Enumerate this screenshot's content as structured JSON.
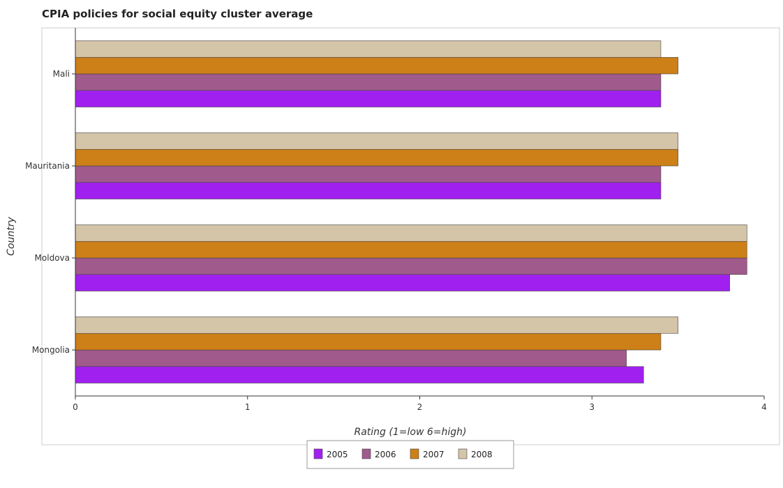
{
  "chart_data": {
    "type": "bar",
    "orientation": "horizontal",
    "title": "CPIA policies for social equity cluster average",
    "xlabel": "Rating (1=low 6=high)",
    "ylabel": "Country",
    "xlim": [
      0,
      4
    ],
    "xticks": [
      0,
      1,
      2,
      3,
      4
    ],
    "categories": [
      "Mali",
      "Mauritania",
      "Moldova",
      "Mongolia"
    ],
    "series": [
      {
        "name": "2005",
        "color": "#a020f0",
        "values": [
          3.4,
          3.4,
          3.8,
          3.3
        ]
      },
      {
        "name": "2006",
        "color": "#a05a8c",
        "values": [
          3.4,
          3.4,
          3.9,
          3.2
        ]
      },
      {
        "name": "2007",
        "color": "#cd7f18",
        "values": [
          3.5,
          3.5,
          3.9,
          3.4
        ]
      },
      {
        "name": "2008",
        "color": "#d4c4a8",
        "values": [
          3.4,
          3.5,
          3.9,
          3.5
        ]
      }
    ],
    "grid": false,
    "legend_position": "bottom-center"
  }
}
